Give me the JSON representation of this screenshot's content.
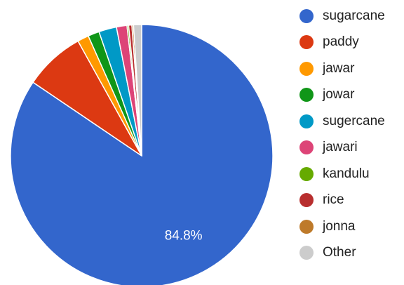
{
  "chart_data": {
    "type": "pie",
    "title": "",
    "slices": [
      {
        "label": "sugarcane",
        "value": 84.8,
        "color": "#3366cc",
        "display": "84.8%"
      },
      {
        "label": "paddy",
        "value": 7.5,
        "color": "#dc3912",
        "display": ""
      },
      {
        "label": "jawar",
        "value": 1.4,
        "color": "#ff9900",
        "display": ""
      },
      {
        "label": "jowar",
        "value": 1.4,
        "color": "#109618",
        "display": ""
      },
      {
        "label": "sugercane",
        "value": 2.2,
        "color": "#0099c6",
        "display": ""
      },
      {
        "label": "jawari",
        "value": 1.3,
        "color": "#dd4477",
        "display": ""
      },
      {
        "label": "kandulu",
        "value": 0.2,
        "color": "#66aa00",
        "display": ""
      },
      {
        "label": "rice",
        "value": 0.4,
        "color": "#b82e2e",
        "display": ""
      },
      {
        "label": "jonna",
        "value": 0.2,
        "color": "#be7a2a",
        "display": ""
      },
      {
        "label": "Other",
        "value": 1.0,
        "color": "#cccccc",
        "display": ""
      }
    ],
    "legend_position": "right",
    "start_angle": "top",
    "direction": "clockwise"
  }
}
